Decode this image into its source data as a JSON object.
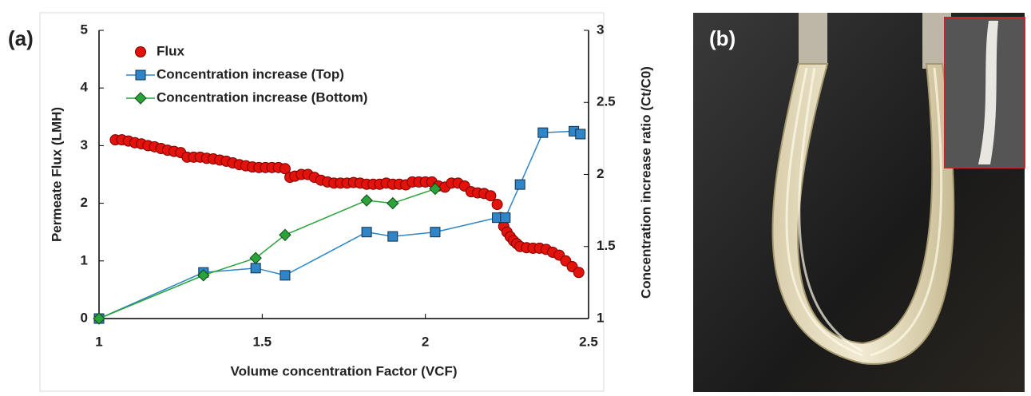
{
  "panel_labels": [
    "(a)",
    "(b)"
  ],
  "chart_data": {
    "type": "line",
    "xlabel": "Volume concentration Factor (VCF)",
    "ylabel": "Permeate Flux (LMH)",
    "y2label": "Concentration increase ratio (Ct/C0)",
    "xlim": [
      1,
      2.5
    ],
    "xticks": [
      1,
      1.5,
      2,
      2.5
    ],
    "ylim": [
      0,
      5
    ],
    "yticks": [
      0,
      1,
      2,
      3,
      4,
      5
    ],
    "y2lim": [
      1,
      3
    ],
    "y2ticks": [
      1,
      1.5,
      2,
      2.5,
      3
    ],
    "legend": "upper left",
    "series": [
      {
        "name": "Flux",
        "color": "#e3120b",
        "marker": "circle",
        "line": false,
        "axis": "y",
        "x": [
          1.05,
          1.07,
          1.09,
          1.11,
          1.13,
          1.15,
          1.17,
          1.19,
          1.21,
          1.23,
          1.25,
          1.27,
          1.29,
          1.31,
          1.33,
          1.35,
          1.37,
          1.39,
          1.41,
          1.43,
          1.45,
          1.47,
          1.49,
          1.51,
          1.53,
          1.55,
          1.57,
          1.585,
          1.6,
          1.62,
          1.64,
          1.66,
          1.68,
          1.7,
          1.72,
          1.74,
          1.76,
          1.78,
          1.8,
          1.82,
          1.84,
          1.86,
          1.88,
          1.9,
          1.92,
          1.94,
          1.96,
          1.98,
          2.0,
          2.02,
          2.04,
          2.06,
          2.08,
          2.1,
          2.12,
          2.14,
          2.16,
          2.18,
          2.2,
          2.22,
          2.23,
          2.24,
          2.25,
          2.26,
          2.27,
          2.28,
          2.29,
          2.31,
          2.33,
          2.35,
          2.37,
          2.39,
          2.41,
          2.43,
          2.45,
          2.47
        ],
        "values": [
          3.1,
          3.1,
          3.08,
          3.05,
          3.03,
          3.0,
          2.98,
          2.95,
          2.92,
          2.9,
          2.88,
          2.8,
          2.8,
          2.8,
          2.78,
          2.77,
          2.75,
          2.73,
          2.7,
          2.67,
          2.65,
          2.63,
          2.62,
          2.62,
          2.62,
          2.62,
          2.6,
          2.45,
          2.47,
          2.5,
          2.5,
          2.45,
          2.4,
          2.37,
          2.35,
          2.35,
          2.35,
          2.36,
          2.35,
          2.33,
          2.33,
          2.33,
          2.35,
          2.33,
          2.33,
          2.32,
          2.37,
          2.37,
          2.37,
          2.37,
          2.3,
          2.28,
          2.35,
          2.35,
          2.3,
          2.2,
          2.18,
          2.17,
          2.13,
          1.98,
          1.75,
          1.6,
          1.5,
          1.42,
          1.35,
          1.3,
          1.25,
          1.23,
          1.22,
          1.22,
          1.2,
          1.15,
          1.1,
          1.0,
          0.9,
          0.8
        ]
      },
      {
        "name": "Concentration increase (Top)",
        "color": "#2e86c8",
        "marker": "square",
        "line": true,
        "axis": "y2",
        "x": [
          1,
          1.32,
          1.48,
          1.57,
          1.82,
          1.9,
          2.03,
          2.22,
          2.245,
          2.29,
          2.36,
          2.455,
          2.475
        ],
        "values": [
          1,
          1.32,
          1.35,
          1.3,
          1.6,
          1.57,
          1.6,
          1.7,
          1.7,
          1.93,
          2.29,
          2.3,
          2.28
        ]
      },
      {
        "name": "Concentration increase (Bottom)",
        "color": "#2aa33a",
        "marker": "diamond",
        "line": true,
        "axis": "y2",
        "x": [
          1,
          1.32,
          1.48,
          1.57,
          1.82,
          1.9,
          2.03
        ],
        "values": [
          1,
          1.3,
          1.42,
          1.58,
          1.82,
          1.8,
          1.9
        ]
      }
    ]
  }
}
